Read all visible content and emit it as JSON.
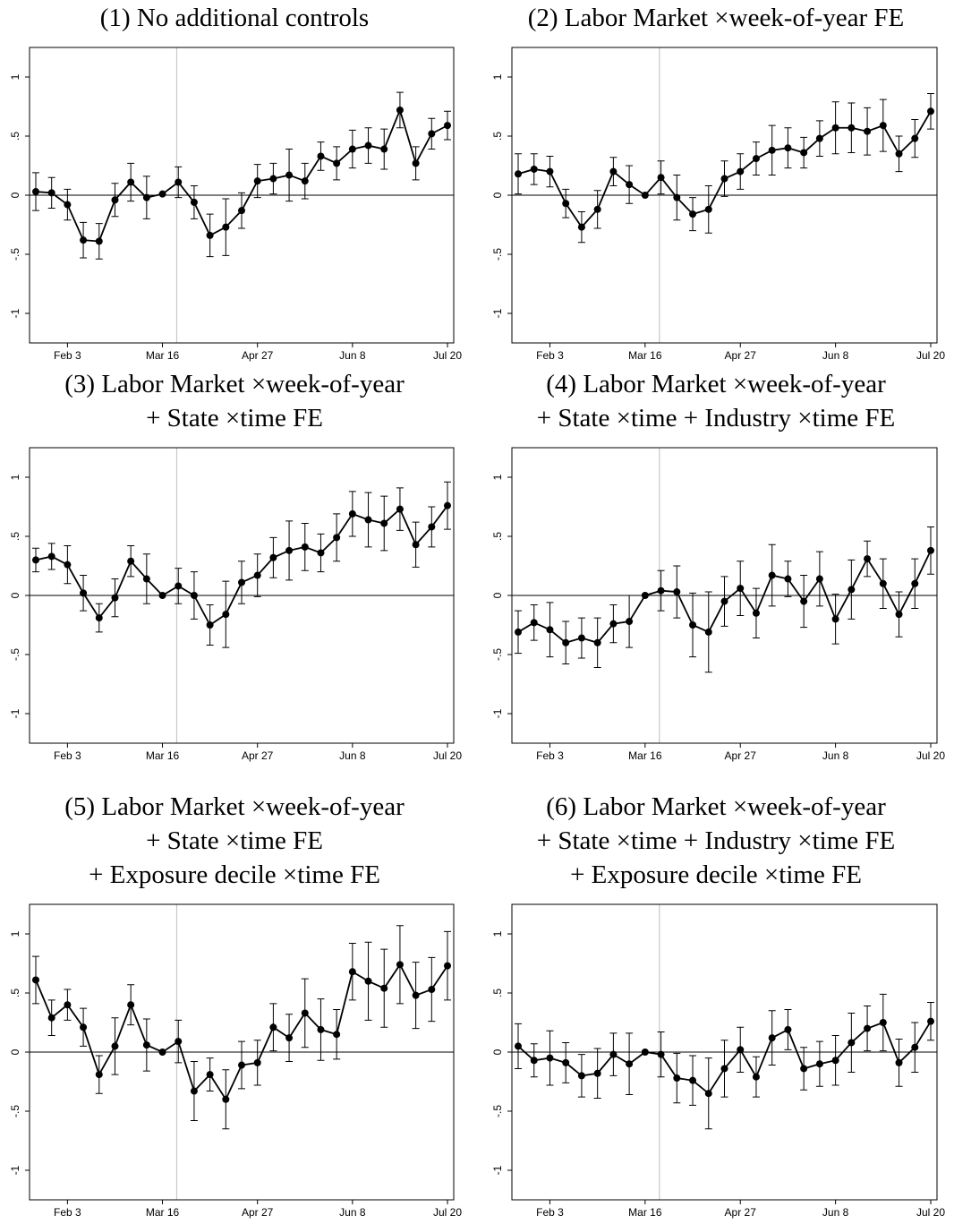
{
  "chart_data": [
    {
      "type": "line",
      "title": [
        "(1) No additional controls"
      ],
      "categories": [
        null,
        null,
        "Feb 3",
        null,
        null,
        null,
        null,
        null,
        "Mar 16",
        null,
        null,
        null,
        null,
        null,
        "Apr 27",
        null,
        null,
        null,
        null,
        null,
        "Jun 8",
        null,
        null,
        null,
        null,
        null,
        "Jul 20"
      ],
      "values": [
        0.03,
        0.02,
        -0.08,
        -0.38,
        -0.39,
        -0.04,
        0.11,
        -0.02,
        0.01,
        0.11,
        -0.06,
        -0.34,
        -0.27,
        -0.13,
        0.12,
        0.14,
        0.17,
        0.12,
        0.33,
        0.27,
        0.39,
        0.42,
        0.39,
        0.72,
        0.27,
        0.52,
        0.59
      ],
      "errors": [
        0.16,
        0.13,
        0.13,
        0.15,
        0.15,
        0.14,
        0.16,
        0.18,
        0,
        0.13,
        0.14,
        0.18,
        0.24,
        0.15,
        0.14,
        0.13,
        0.22,
        0.15,
        0.12,
        0.14,
        0.16,
        0.15,
        0.17,
        0.15,
        0.14,
        0.13,
        0.12
      ],
      "color": "#000000",
      "ylim": [
        -1.25,
        1.25
      ],
      "yticks": [
        -1,
        {
          "value": -0.5,
          "label": "-.5"
        },
        0,
        {
          "value": 0.5,
          "label": ".5"
        },
        1
      ],
      "hline": 0,
      "reference_line_x": 8.9
    },
    {
      "type": "line",
      "title": [
        "(2) Labor Market ×week-of-year FE"
      ],
      "categories": [
        null,
        null,
        "Feb 3",
        null,
        null,
        null,
        null,
        null,
        "Mar 16",
        null,
        null,
        null,
        null,
        null,
        "Apr 27",
        null,
        null,
        null,
        null,
        null,
        "Jun 8",
        null,
        null,
        null,
        null,
        null,
        "Jul 20"
      ],
      "values": [
        0.18,
        0.22,
        0.2,
        -0.07,
        -0.27,
        -0.12,
        0.2,
        0.09,
        0,
        0.15,
        -0.02,
        -0.16,
        -0.12,
        0.14,
        0.2,
        0.31,
        0.38,
        0.4,
        0.36,
        0.48,
        0.57,
        0.57,
        0.54,
        0.59,
        0.35,
        0.48,
        0.71
      ],
      "errors": [
        0.17,
        0.13,
        0.13,
        0.12,
        0.13,
        0.16,
        0.12,
        0.16,
        0,
        0.14,
        0.19,
        0.14,
        0.2,
        0.15,
        0.15,
        0.14,
        0.21,
        0.17,
        0.13,
        0.15,
        0.22,
        0.21,
        0.2,
        0.22,
        0.15,
        0.16,
        0.15
      ],
      "color": "#000000",
      "ylim": [
        -1.25,
        1.25
      ],
      "yticks": [
        -1,
        {
          "value": -0.5,
          "label": "-.5"
        },
        0,
        {
          "value": 0.5,
          "label": ".5"
        },
        1
      ],
      "hline": 0,
      "reference_line_x": 8.9
    },
    {
      "type": "line",
      "title": [
        "(3) Labor Market ×week-of-year",
        "+ State ×time FE"
      ],
      "categories": [
        null,
        null,
        "Feb 3",
        null,
        null,
        null,
        null,
        null,
        "Mar 16",
        null,
        null,
        null,
        null,
        null,
        "Apr 27",
        null,
        null,
        null,
        null,
        null,
        "Jun 8",
        null,
        null,
        null,
        null,
        null,
        "Jul 20"
      ],
      "values": [
        0.3,
        0.33,
        0.26,
        0.02,
        -0.19,
        -0.02,
        0.29,
        0.14,
        0,
        0.08,
        0,
        -0.25,
        -0.16,
        0.11,
        0.17,
        0.32,
        0.38,
        0.41,
        0.36,
        0.49,
        0.69,
        0.64,
        0.61,
        0.73,
        0.43,
        0.58,
        0.76
      ],
      "errors": [
        0.1,
        0.11,
        0.16,
        0.15,
        0.12,
        0.16,
        0.13,
        0.21,
        0,
        0.15,
        0.2,
        0.17,
        0.28,
        0.18,
        0.18,
        0.17,
        0.25,
        0.2,
        0.16,
        0.2,
        0.19,
        0.23,
        0.23,
        0.18,
        0.19,
        0.17,
        0.2
      ],
      "color": "#000000",
      "ylim": [
        -1.25,
        1.25
      ],
      "yticks": [
        -1,
        {
          "value": -0.5,
          "label": "-.5"
        },
        0,
        {
          "value": 0.5,
          "label": ".5"
        },
        1
      ],
      "hline": 0,
      "reference_line_x": 8.9
    },
    {
      "type": "line",
      "title": [
        "(4) Labor Market ×week-of-year",
        "+ State ×time + Industry ×time FE"
      ],
      "categories": [
        null,
        null,
        "Feb 3",
        null,
        null,
        null,
        null,
        null,
        "Mar 16",
        null,
        null,
        null,
        null,
        null,
        "Apr 27",
        null,
        null,
        null,
        null,
        null,
        "Jun 8",
        null,
        null,
        null,
        null,
        null,
        "Jul 20"
      ],
      "values": [
        -0.31,
        -0.23,
        -0.29,
        -0.4,
        -0.36,
        -0.4,
        -0.24,
        -0.22,
        0,
        0.04,
        0.03,
        -0.25,
        -0.31,
        -0.05,
        0.06,
        -0.15,
        0.17,
        0.14,
        -0.05,
        0.14,
        -0.2,
        0.05,
        0.31,
        0.1,
        -0.16,
        0.1,
        0.38
      ],
      "errors": [
        0.18,
        0.15,
        0.23,
        0.18,
        0.17,
        0.21,
        0.16,
        0.22,
        0,
        0.17,
        0.22,
        0.27,
        0.34,
        0.21,
        0.23,
        0.21,
        0.26,
        0.15,
        0.22,
        0.23,
        0.21,
        0.25,
        0.15,
        0.21,
        0.19,
        0.21,
        0.2
      ],
      "color": "#000000",
      "ylim": [
        -1.25,
        1.25
      ],
      "yticks": [
        -1,
        {
          "value": -0.5,
          "label": "-.5"
        },
        0,
        {
          "value": 0.5,
          "label": ".5"
        },
        1
      ],
      "hline": 0,
      "reference_line_x": 8.9
    },
    {
      "type": "line",
      "title": [
        "(5) Labor Market ×week-of-year",
        "+ State ×time FE",
        "+ Exposure decile ×time FE"
      ],
      "categories": [
        null,
        null,
        "Feb 3",
        null,
        null,
        null,
        null,
        null,
        "Mar 16",
        null,
        null,
        null,
        null,
        null,
        "Apr 27",
        null,
        null,
        null,
        null,
        null,
        "Jun 8",
        null,
        null,
        null,
        null,
        null,
        "Jul 20"
      ],
      "values": [
        0.61,
        0.29,
        0.4,
        0.21,
        -0.19,
        0.05,
        0.4,
        0.06,
        0,
        0.09,
        -0.33,
        -0.19,
        -0.4,
        -0.11,
        -0.09,
        0.21,
        0.12,
        0.33,
        0.19,
        0.15,
        0.68,
        0.6,
        0.54,
        0.74,
        0.48,
        0.53,
        0.73
      ],
      "errors": [
        0.2,
        0.15,
        0.13,
        0.16,
        0.16,
        0.24,
        0.17,
        0.22,
        0,
        0.18,
        0.25,
        0.14,
        0.25,
        0.2,
        0.19,
        0.2,
        0.2,
        0.29,
        0.26,
        0.21,
        0.24,
        0.33,
        0.33,
        0.33,
        0.28,
        0.27,
        0.29
      ],
      "color": "#000000",
      "ylim": [
        -1.25,
        1.25
      ],
      "yticks": [
        -1,
        {
          "value": -0.5,
          "label": "-.5"
        },
        0,
        {
          "value": 0.5,
          "label": ".5"
        },
        1
      ],
      "hline": 0,
      "reference_line_x": 8.9
    },
    {
      "type": "line",
      "title": [
        "(6) Labor Market ×week-of-year",
        "+ State ×time + Industry ×time FE",
        "+ Exposure decile ×time FE"
      ],
      "categories": [
        null,
        null,
        "Feb 3",
        null,
        null,
        null,
        null,
        null,
        "Mar 16",
        null,
        null,
        null,
        null,
        null,
        "Apr 27",
        null,
        null,
        null,
        null,
        null,
        "Jun 8",
        null,
        null,
        null,
        null,
        null,
        "Jul 20"
      ],
      "values": [
        0.05,
        -0.07,
        -0.05,
        -0.09,
        -0.2,
        -0.18,
        -0.02,
        -0.1,
        0,
        -0.02,
        -0.22,
        -0.24,
        -0.35,
        -0.14,
        0.02,
        -0.21,
        0.12,
        0.19,
        -0.14,
        -0.1,
        -0.07,
        0.08,
        0.2,
        0.25,
        -0.09,
        0.04,
        0.26
      ],
      "errors": [
        0.19,
        0.14,
        0.23,
        0.17,
        0.18,
        0.21,
        0.18,
        0.26,
        0,
        0.19,
        0.21,
        0.21,
        0.3,
        0.24,
        0.19,
        0.17,
        0.23,
        0.17,
        0.18,
        0.19,
        0.21,
        0.25,
        0.19,
        0.24,
        0.2,
        0.21,
        0.16
      ],
      "color": "#000000",
      "ylim": [
        -1.25,
        1.25
      ],
      "yticks": [
        -1,
        {
          "value": -0.5,
          "label": "-.5"
        },
        0,
        {
          "value": 0.5,
          "label": ".5"
        },
        1
      ],
      "hline": 0,
      "reference_line_x": 8.9
    }
  ]
}
